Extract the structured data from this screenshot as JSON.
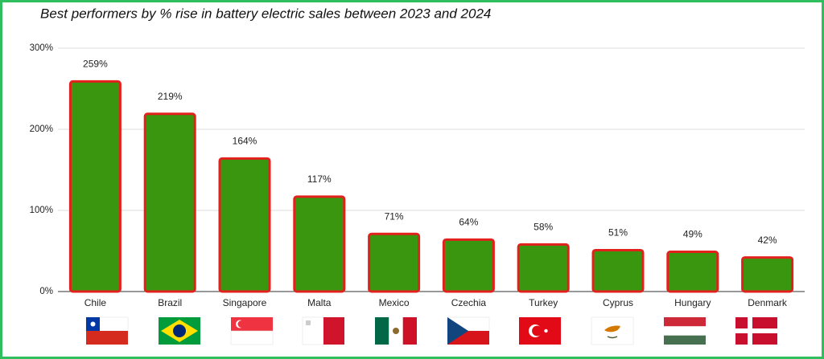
{
  "chart_data": {
    "type": "bar",
    "title": "Best performers by % rise in battery electric sales between 2023 and  2024",
    "categories": [
      "Chile",
      "Brazil",
      "Singapore",
      "Malta",
      "Mexico",
      "Czechia",
      "Turkey",
      "Cyprus",
      "Hungary",
      "Denmark"
    ],
    "values": [
      259,
      219,
      164,
      117,
      71,
      64,
      58,
      51,
      49,
      42
    ],
    "value_labels": [
      "259%",
      "219%",
      "164%",
      "117%",
      "71%",
      "64%",
      "58%",
      "51%",
      "49%",
      "42%"
    ],
    "color": "#3a960f",
    "edge_color": "#e3211c",
    "ylim": [
      0,
      300
    ],
    "yticks": [
      {
        "value": 0,
        "label": "0%"
      },
      {
        "value": 100,
        "label": "100%"
      },
      {
        "value": 200,
        "label": "200%"
      },
      {
        "value": 300,
        "label": "300%"
      }
    ],
    "grid": true
  }
}
